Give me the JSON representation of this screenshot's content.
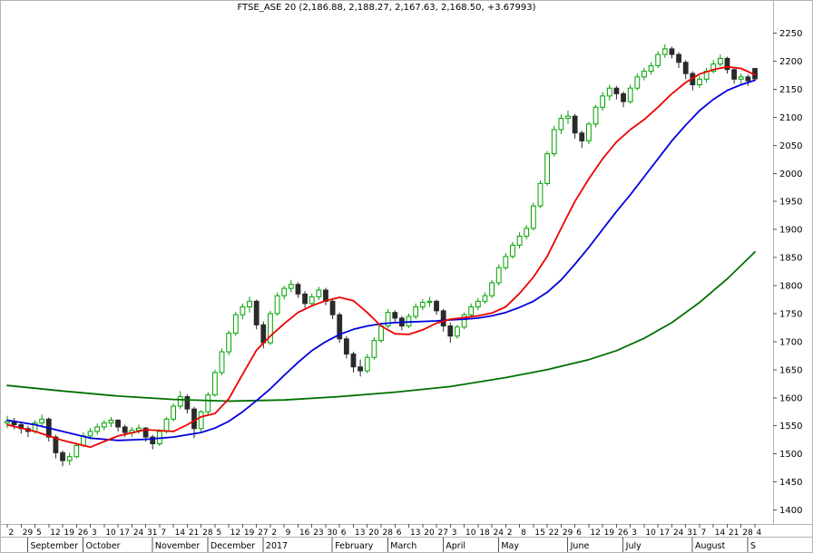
{
  "chart_data": {
    "type": "candlestick",
    "title": "FTSE_ASE 20 (2,186.88, 2,188.27, 2,167.63, 2,168.50, +3.67993)",
    "symbol": "FTSE_ASE 20",
    "quote": {
      "open": "2,186.88",
      "high": "2,188.27",
      "low": "2,167.63",
      "close": "2,168.50",
      "change": "+3.67993"
    },
    "ylim": [
      1375,
      2280
    ],
    "grid": "off",
    "legend_position": "none",
    "colors": {
      "up_candle": "#00a000",
      "down_candle": "#2a2a2a",
      "ma_fast": "#ee0000",
      "ma_medium": "#0000dd",
      "ma_slow": "#007000",
      "frame": "#b3b3b3",
      "tick": "#555555",
      "text": "#000000",
      "background": "#ffffff"
    },
    "y_axis": {
      "side": "right",
      "ticks": [
        2250,
        2200,
        2150,
        2100,
        2050,
        2000,
        1950,
        1900,
        1850,
        1800,
        1750,
        1700,
        1650,
        1600,
        1550,
        1500,
        1450,
        1400
      ]
    },
    "x_axis": {
      "day_labels": [
        "2",
        "29",
        "5",
        "12",
        "19",
        "26",
        "3",
        "10",
        "17",
        "24",
        "31",
        "7",
        "14",
        "21",
        "28",
        "5",
        "12",
        "19",
        "27",
        "2",
        "9",
        "16",
        "23",
        "30",
        "6",
        "13",
        "20",
        "28",
        "6",
        "13",
        "20",
        "27",
        "3",
        "10",
        "18",
        "24",
        "2",
        "8",
        "15",
        "22",
        "29",
        "6",
        "12",
        "19",
        "26",
        "3",
        "10",
        "17",
        "24",
        "31",
        "7",
        "14",
        "21",
        "28",
        "4"
      ],
      "months": [
        {
          "label": "September",
          "tick": 2
        },
        {
          "label": "October",
          "tick": 6
        },
        {
          "label": "November",
          "tick": 11
        },
        {
          "label": "December",
          "tick": 15
        },
        {
          "label": "2017",
          "tick": 19
        },
        {
          "label": "February",
          "tick": 24
        },
        {
          "label": "March",
          "tick": 28
        },
        {
          "label": "April",
          "tick": 32
        },
        {
          "label": "May",
          "tick": 36
        },
        {
          "label": "June",
          "tick": 41
        },
        {
          "label": "July",
          "tick": 45
        },
        {
          "label": "August",
          "tick": 50
        },
        {
          "label": "S",
          "tick": 54
        }
      ]
    },
    "candles": [
      [
        1555,
        1568,
        1546,
        1558
      ],
      [
        1558,
        1564,
        1544,
        1552
      ],
      [
        1552,
        1556,
        1536,
        1545
      ],
      [
        1545,
        1550,
        1530,
        1540
      ],
      [
        1540,
        1560,
        1536,
        1555
      ],
      [
        1555,
        1570,
        1550,
        1562
      ],
      [
        1562,
        1565,
        1522,
        1530
      ],
      [
        1530,
        1534,
        1492,
        1502
      ],
      [
        1502,
        1506,
        1478,
        1488
      ],
      [
        1488,
        1502,
        1480,
        1495
      ],
      [
        1495,
        1520,
        1492,
        1515
      ],
      [
        1515,
        1538,
        1512,
        1532
      ],
      [
        1532,
        1546,
        1526,
        1540
      ],
      [
        1540,
        1554,
        1534,
        1548
      ],
      [
        1548,
        1560,
        1542,
        1555
      ],
      [
        1555,
        1566,
        1548,
        1560
      ],
      [
        1560,
        1562,
        1540,
        1548
      ],
      [
        1548,
        1552,
        1530,
        1538
      ],
      [
        1538,
        1548,
        1530,
        1542
      ],
      [
        1542,
        1552,
        1536,
        1546
      ],
      [
        1546,
        1548,
        1522,
        1530
      ],
      [
        1530,
        1534,
        1508,
        1518
      ],
      [
        1518,
        1544,
        1514,
        1540
      ],
      [
        1540,
        1566,
        1536,
        1562
      ],
      [
        1562,
        1590,
        1558,
        1585
      ],
      [
        1585,
        1612,
        1580,
        1602
      ],
      [
        1602,
        1606,
        1572,
        1580
      ],
      [
        1580,
        1584,
        1528,
        1545
      ],
      [
        1545,
        1578,
        1540,
        1575
      ],
      [
        1575,
        1610,
        1570,
        1605
      ],
      [
        1605,
        1650,
        1602,
        1645
      ],
      [
        1645,
        1688,
        1640,
        1682
      ],
      [
        1682,
        1720,
        1676,
        1715
      ],
      [
        1715,
        1753,
        1710,
        1748
      ],
      [
        1748,
        1768,
        1740,
        1762
      ],
      [
        1762,
        1780,
        1752,
        1772
      ],
      [
        1772,
        1775,
        1722,
        1730
      ],
      [
        1730,
        1736,
        1688,
        1698
      ],
      [
        1698,
        1755,
        1694,
        1750
      ],
      [
        1750,
        1788,
        1746,
        1782
      ],
      [
        1782,
        1800,
        1775,
        1795
      ],
      [
        1795,
        1810,
        1788,
        1802
      ],
      [
        1802,
        1806,
        1778,
        1785
      ],
      [
        1785,
        1790,
        1760,
        1768
      ],
      [
        1768,
        1786,
        1762,
        1780
      ],
      [
        1780,
        1798,
        1774,
        1792
      ],
      [
        1792,
        1796,
        1765,
        1772
      ],
      [
        1772,
        1776,
        1740,
        1748
      ],
      [
        1748,
        1752,
        1698,
        1705
      ],
      [
        1705,
        1710,
        1670,
        1678
      ],
      [
        1678,
        1682,
        1645,
        1655
      ],
      [
        1655,
        1668,
        1638,
        1648
      ],
      [
        1648,
        1678,
        1644,
        1672
      ],
      [
        1672,
        1708,
        1668,
        1702
      ],
      [
        1702,
        1734,
        1698,
        1728
      ],
      [
        1728,
        1758,
        1724,
        1752
      ],
      [
        1752,
        1756,
        1735,
        1742
      ],
      [
        1742,
        1746,
        1720,
        1728
      ],
      [
        1728,
        1750,
        1724,
        1745
      ],
      [
        1745,
        1768,
        1740,
        1762
      ],
      [
        1762,
        1776,
        1756,
        1770
      ],
      [
        1770,
        1780,
        1762,
        1772
      ],
      [
        1772,
        1775,
        1748,
        1755
      ],
      [
        1755,
        1758,
        1718,
        1728
      ],
      [
        1728,
        1734,
        1698,
        1710
      ],
      [
        1710,
        1730,
        1705,
        1726
      ],
      [
        1726,
        1752,
        1722,
        1748
      ],
      [
        1748,
        1768,
        1744,
        1762
      ],
      [
        1762,
        1778,
        1756,
        1772
      ],
      [
        1772,
        1788,
        1768,
        1782
      ],
      [
        1782,
        1810,
        1778,
        1805
      ],
      [
        1805,
        1838,
        1800,
        1832
      ],
      [
        1832,
        1858,
        1828,
        1852
      ],
      [
        1852,
        1878,
        1848,
        1872
      ],
      [
        1872,
        1895,
        1866,
        1888
      ],
      [
        1888,
        1908,
        1882,
        1902
      ],
      [
        1902,
        1948,
        1898,
        1942
      ],
      [
        1942,
        1988,
        1938,
        1982
      ],
      [
        1982,
        2040,
        1978,
        2035
      ],
      [
        2035,
        2085,
        2030,
        2078
      ],
      [
        2078,
        2105,
        2070,
        2098
      ],
      [
        2098,
        2112,
        2088,
        2102
      ],
      [
        2102,
        2106,
        2062,
        2072
      ],
      [
        2072,
        2076,
        2045,
        2058
      ],
      [
        2058,
        2092,
        2052,
        2088
      ],
      [
        2088,
        2122,
        2082,
        2118
      ],
      [
        2118,
        2145,
        2112,
        2138
      ],
      [
        2138,
        2158,
        2130,
        2152
      ],
      [
        2152,
        2156,
        2132,
        2142
      ],
      [
        2142,
        2146,
        2118,
        2128
      ],
      [
        2128,
        2158,
        2124,
        2152
      ],
      [
        2152,
        2178,
        2148,
        2172
      ],
      [
        2172,
        2188,
        2166,
        2182
      ],
      [
        2182,
        2198,
        2176,
        2192
      ],
      [
        2192,
        2218,
        2188,
        2212
      ],
      [
        2212,
        2230,
        2206,
        2222
      ],
      [
        2222,
        2226,
        2205,
        2212
      ],
      [
        2212,
        2216,
        2188,
        2198
      ],
      [
        2198,
        2202,
        2168,
        2178
      ],
      [
        2178,
        2182,
        2148,
        2158
      ],
      [
        2158,
        2174,
        2152,
        2168
      ],
      [
        2168,
        2188,
        2162,
        2182
      ],
      [
        2182,
        2202,
        2178,
        2195
      ],
      [
        2195,
        2212,
        2190,
        2205
      ],
      [
        2205,
        2208,
        2178,
        2185
      ],
      [
        2185,
        2190,
        2160,
        2168
      ],
      [
        2168,
        2178,
        2158,
        2172
      ],
      [
        2172,
        2176,
        2156,
        2165
      ],
      [
        2186.88,
        2188.27,
        2167.63,
        2168.5
      ]
    ],
    "moving_averages": [
      {
        "name": "moving-average-fast-red",
        "color": "#ee0000",
        "points": [
          [
            0,
            1552
          ],
          [
            4,
            1540
          ],
          [
            8,
            1524
          ],
          [
            12,
            1512
          ],
          [
            16,
            1532
          ],
          [
            20,
            1543
          ],
          [
            24,
            1540
          ],
          [
            26,
            1552
          ],
          [
            28,
            1566
          ],
          [
            30,
            1572
          ],
          [
            32,
            1598
          ],
          [
            34,
            1642
          ],
          [
            36,
            1685
          ],
          [
            38,
            1710
          ],
          [
            40,
            1732
          ],
          [
            42,
            1752
          ],
          [
            44,
            1764
          ],
          [
            46,
            1773
          ],
          [
            48,
            1779
          ],
          [
            50,
            1773
          ],
          [
            52,
            1752
          ],
          [
            54,
            1728
          ],
          [
            56,
            1714
          ],
          [
            58,
            1713
          ],
          [
            60,
            1721
          ],
          [
            62,
            1733
          ],
          [
            64,
            1740
          ],
          [
            66,
            1743
          ],
          [
            68,
            1746
          ],
          [
            70,
            1751
          ],
          [
            72,
            1762
          ],
          [
            74,
            1786
          ],
          [
            76,
            1815
          ],
          [
            78,
            1852
          ],
          [
            80,
            1902
          ],
          [
            82,
            1950
          ],
          [
            84,
            1990
          ],
          [
            86,
            2026
          ],
          [
            88,
            2056
          ],
          [
            90,
            2078
          ],
          [
            92,
            2096
          ],
          [
            94,
            2118
          ],
          [
            96,
            2142
          ],
          [
            98,
            2162
          ],
          [
            100,
            2177
          ],
          [
            102,
            2185
          ],
          [
            104,
            2190
          ],
          [
            106,
            2187
          ],
          [
            108,
            2176
          ]
        ]
      },
      {
        "name": "moving-average-medium-blue",
        "color": "#0000dd",
        "points": [
          [
            0,
            1560
          ],
          [
            4,
            1552
          ],
          [
            8,
            1540
          ],
          [
            12,
            1528
          ],
          [
            16,
            1524
          ],
          [
            20,
            1526
          ],
          [
            24,
            1530
          ],
          [
            28,
            1538
          ],
          [
            30,
            1546
          ],
          [
            32,
            1558
          ],
          [
            34,
            1575
          ],
          [
            36,
            1595
          ],
          [
            38,
            1616
          ],
          [
            40,
            1640
          ],
          [
            42,
            1663
          ],
          [
            44,
            1684
          ],
          [
            46,
            1700
          ],
          [
            48,
            1713
          ],
          [
            50,
            1722
          ],
          [
            52,
            1728
          ],
          [
            54,
            1732
          ],
          [
            56,
            1734
          ],
          [
            58,
            1735
          ],
          [
            60,
            1736
          ],
          [
            62,
            1737
          ],
          [
            64,
            1739
          ],
          [
            66,
            1740
          ],
          [
            68,
            1742
          ],
          [
            70,
            1746
          ],
          [
            72,
            1752
          ],
          [
            74,
            1761
          ],
          [
            76,
            1772
          ],
          [
            78,
            1788
          ],
          [
            80,
            1810
          ],
          [
            82,
            1838
          ],
          [
            84,
            1868
          ],
          [
            86,
            1900
          ],
          [
            88,
            1932
          ],
          [
            90,
            1962
          ],
          [
            92,
            1994
          ],
          [
            94,
            2026
          ],
          [
            96,
            2058
          ],
          [
            98,
            2086
          ],
          [
            100,
            2112
          ],
          [
            102,
            2132
          ],
          [
            104,
            2148
          ],
          [
            106,
            2158
          ],
          [
            108,
            2166
          ]
        ]
      },
      {
        "name": "moving-average-slow-green",
        "color": "#007000",
        "points": [
          [
            0,
            1622
          ],
          [
            8,
            1612
          ],
          [
            16,
            1603
          ],
          [
            24,
            1597
          ],
          [
            32,
            1594
          ],
          [
            40,
            1596
          ],
          [
            48,
            1602
          ],
          [
            56,
            1610
          ],
          [
            64,
            1620
          ],
          [
            72,
            1636
          ],
          [
            78,
            1650
          ],
          [
            84,
            1668
          ],
          [
            88,
            1684
          ],
          [
            92,
            1706
          ],
          [
            96,
            1734
          ],
          [
            100,
            1770
          ],
          [
            104,
            1812
          ],
          [
            108,
            1860
          ]
        ]
      }
    ]
  }
}
